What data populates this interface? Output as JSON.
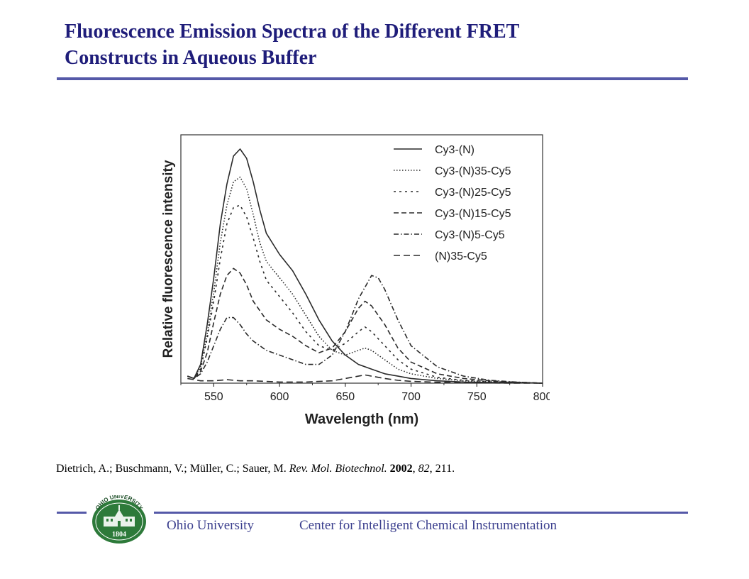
{
  "slide": {
    "title_line1": "Fluorescence Emission Spectra of the Different FRET",
    "title_line2": "Constructs in Aqueous Buffer",
    "title_color": "#1f1d7a",
    "rule_color": "#5559a8",
    "footer_text_color": "#3b3f8e"
  },
  "citation": {
    "authors": "Dietrich, A.; Buschmann, V.; Müller, C.; Sauer, M. ",
    "journal": "Rev.  Mol.  Biotechnol.",
    "year": "2002",
    "volume": "82",
    "pages": "211."
  },
  "footer": {
    "university": "Ohio University",
    "center": "Center for Intelligent Chemical Instrumentation",
    "seal_top_text": "OHIO UNIVERSITY",
    "seal_year": "1804",
    "seal_color": "#2d7a3a"
  },
  "chart_data": {
    "type": "line",
    "title": "",
    "xlabel": "Wavelength (nm)",
    "ylabel": "Relative fluorescence intensity",
    "xlim": [
      525,
      800
    ],
    "ylim": [
      0,
      1.0
    ],
    "xticks": [
      550,
      600,
      650,
      700,
      750,
      800
    ],
    "grid": false,
    "legend_position": "top-right",
    "series": [
      {
        "name": "Cy3-(N)",
        "dash": "solid",
        "x": [
          530,
          535,
          540,
          545,
          550,
          555,
          560,
          565,
          570,
          575,
          580,
          585,
          590,
          600,
          610,
          620,
          630,
          640,
          650,
          660,
          670,
          680,
          690,
          700,
          720,
          740,
          760,
          780,
          800
        ],
        "y": [
          0.03,
          0.02,
          0.08,
          0.25,
          0.45,
          0.68,
          0.85,
          0.97,
          1.0,
          0.96,
          0.86,
          0.74,
          0.64,
          0.55,
          0.48,
          0.38,
          0.27,
          0.18,
          0.12,
          0.08,
          0.06,
          0.04,
          0.03,
          0.02,
          0.01,
          0.005,
          0.003,
          0.002,
          0.0
        ]
      },
      {
        "name": "Cy3-(N)35-Cy5",
        "dash": "dotted",
        "x": [
          530,
          535,
          540,
          545,
          550,
          555,
          560,
          565,
          570,
          575,
          580,
          585,
          590,
          600,
          610,
          620,
          630,
          640,
          650,
          660,
          665,
          670,
          680,
          690,
          700,
          720,
          740,
          760,
          780,
          800
        ],
        "y": [
          0.03,
          0.02,
          0.07,
          0.21,
          0.39,
          0.6,
          0.76,
          0.86,
          0.88,
          0.83,
          0.72,
          0.6,
          0.52,
          0.45,
          0.38,
          0.29,
          0.2,
          0.14,
          0.12,
          0.14,
          0.15,
          0.14,
          0.1,
          0.06,
          0.04,
          0.02,
          0.01,
          0.006,
          0.003,
          0.0
        ]
      },
      {
        "name": "Cy3-(N)25-Cy5",
        "dash": "short-dash",
        "x": [
          530,
          535,
          540,
          545,
          550,
          555,
          560,
          565,
          570,
          575,
          580,
          585,
          590,
          600,
          610,
          620,
          630,
          640,
          650,
          660,
          665,
          670,
          680,
          690,
          700,
          720,
          740,
          760,
          780,
          800
        ],
        "y": [
          0.03,
          0.02,
          0.06,
          0.19,
          0.35,
          0.53,
          0.68,
          0.75,
          0.76,
          0.71,
          0.62,
          0.52,
          0.44,
          0.37,
          0.3,
          0.22,
          0.16,
          0.14,
          0.17,
          0.22,
          0.24,
          0.22,
          0.16,
          0.1,
          0.06,
          0.025,
          0.012,
          0.007,
          0.003,
          0.0
        ]
      },
      {
        "name": "Cy3-(N)15-Cy5",
        "dash": "long-dash",
        "x": [
          530,
          535,
          540,
          545,
          550,
          555,
          560,
          565,
          570,
          575,
          580,
          590,
          600,
          610,
          620,
          630,
          640,
          650,
          660,
          665,
          670,
          680,
          690,
          700,
          720,
          740,
          760,
          780,
          800
        ],
        "y": [
          0.03,
          0.02,
          0.05,
          0.13,
          0.26,
          0.38,
          0.46,
          0.49,
          0.47,
          0.42,
          0.35,
          0.27,
          0.23,
          0.2,
          0.16,
          0.13,
          0.15,
          0.22,
          0.32,
          0.35,
          0.33,
          0.25,
          0.15,
          0.09,
          0.04,
          0.02,
          0.01,
          0.004,
          0.0
        ]
      },
      {
        "name": "Cy3-(N)5-Cy5",
        "dash": "dash-dot",
        "x": [
          530,
          535,
          540,
          545,
          550,
          555,
          560,
          565,
          570,
          575,
          580,
          590,
          600,
          610,
          620,
          630,
          640,
          650,
          660,
          670,
          675,
          680,
          690,
          700,
          720,
          740,
          760,
          780,
          800
        ],
        "y": [
          0.03,
          0.02,
          0.04,
          0.09,
          0.16,
          0.23,
          0.28,
          0.28,
          0.25,
          0.21,
          0.18,
          0.14,
          0.12,
          0.1,
          0.08,
          0.08,
          0.12,
          0.22,
          0.36,
          0.46,
          0.45,
          0.4,
          0.27,
          0.16,
          0.07,
          0.03,
          0.012,
          0.005,
          0.0
        ]
      },
      {
        "name": "(N)35-Cy5",
        "dash": "dash",
        "x": [
          530,
          540,
          550,
          560,
          570,
          580,
          600,
          620,
          640,
          650,
          660,
          665,
          670,
          680,
          690,
          700,
          720,
          740,
          760,
          780,
          800
        ],
        "y": [
          0.02,
          0.01,
          0.01,
          0.015,
          0.01,
          0.01,
          0.005,
          0.005,
          0.01,
          0.02,
          0.03,
          0.035,
          0.03,
          0.02,
          0.012,
          0.008,
          0.004,
          0.002,
          0.001,
          0.0,
          0.0
        ]
      }
    ]
  }
}
